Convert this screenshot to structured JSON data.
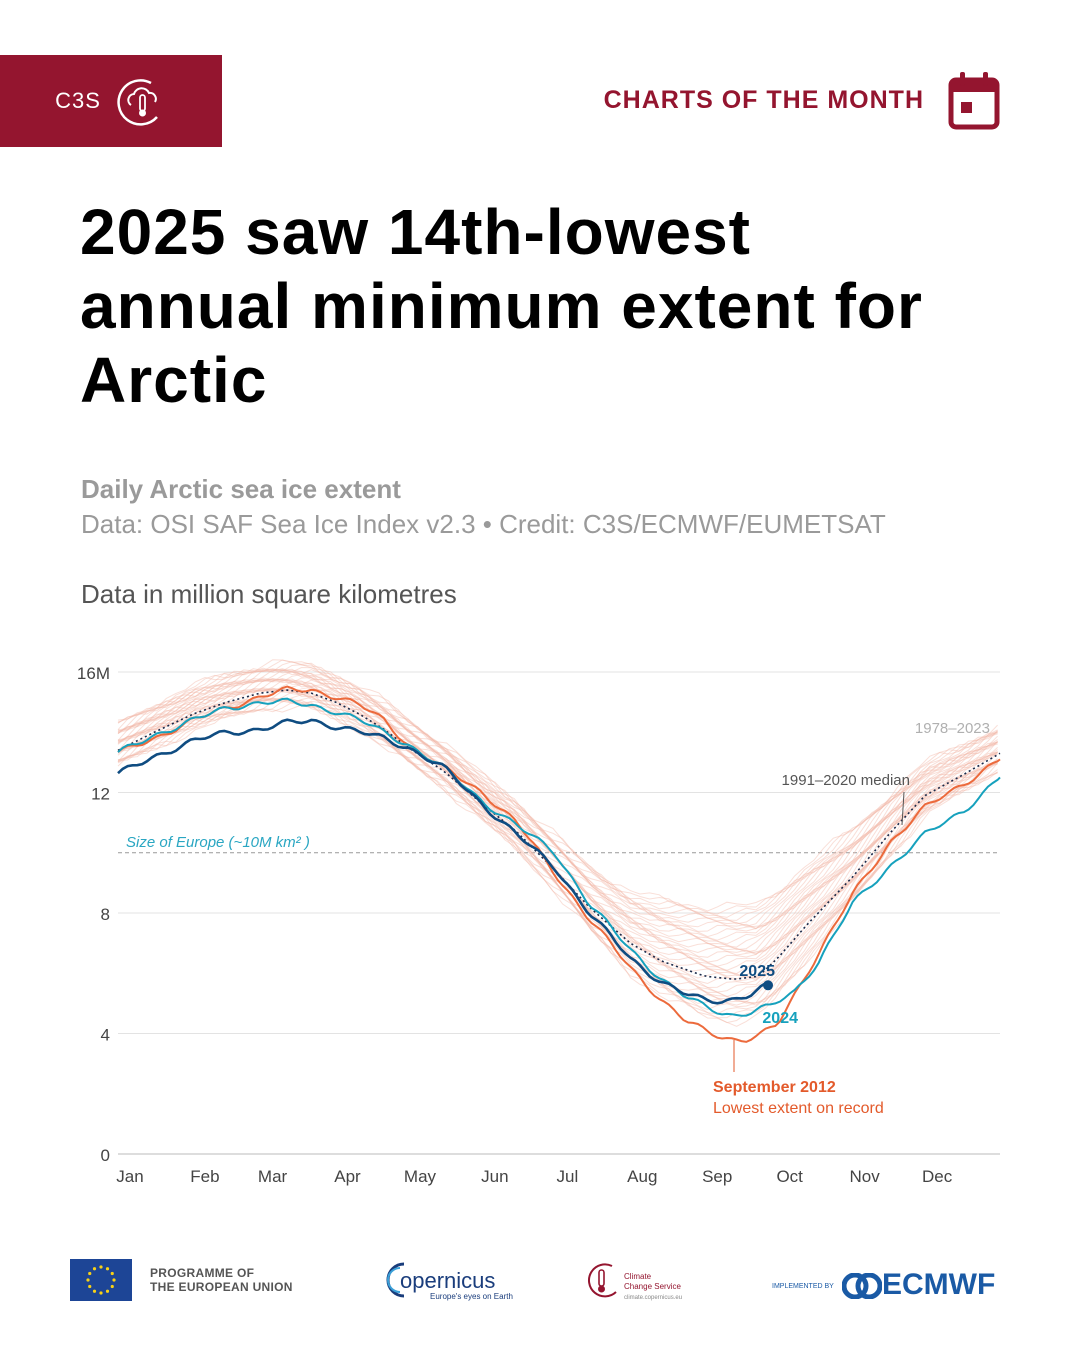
{
  "brand": {
    "name": "C3S",
    "color": "#94152f"
  },
  "series_label": "CHARTS OF THE MONTH",
  "headline": "2025 saw 14th-lowest annual minimum extent for Arctic",
  "subtitle": "Daily Arctic sea ice extent",
  "source": "Data: OSI SAF Sea Ice Index v2.3 • Credit: C3S/ECMWF/EUMETSAT",
  "unit_note": "Data in million square kilometres",
  "icons": {
    "brand_logo": "cloud-thermometer-icon",
    "calendar": "calendar-icon"
  },
  "footer": {
    "eu_line1": "PROGRAMME OF",
    "eu_line2": "THE EUROPEAN UNION",
    "copernicus": "opernicus",
    "copernicus_tagline": "Europe's eyes on Earth",
    "c3s_line1": "Climate",
    "c3s_line2": "Change Service",
    "c3s_url": "climate.copernicus.eu",
    "implemented_by": "IMPLEMENTED BY",
    "ecmwf": "ECMWF"
  },
  "chart_data": {
    "type": "line",
    "title": "Daily Arctic sea ice extent",
    "ylabel": "Data in million square kilometres",
    "ylim": [
      0,
      16
    ],
    "xlim": [
      0,
      365
    ],
    "yticks": [
      {
        "value": 0,
        "label": "0"
      },
      {
        "value": 4,
        "label": "4"
      },
      {
        "value": 8,
        "label": "8"
      },
      {
        "value": 12,
        "label": "12"
      },
      {
        "value": 16,
        "label": "16M"
      }
    ],
    "months": [
      {
        "label": "Jan",
        "day": 0
      },
      {
        "label": "Feb",
        "day": 31
      },
      {
        "label": "Mar",
        "day": 59
      },
      {
        "label": "Apr",
        "day": 90
      },
      {
        "label": "May",
        "day": 120
      },
      {
        "label": "Jun",
        "day": 151
      },
      {
        "label": "Jul",
        "day": 181
      },
      {
        "label": "Aug",
        "day": 212
      },
      {
        "label": "Sep",
        "day": 243
      },
      {
        "label": "Oct",
        "day": 273
      },
      {
        "label": "Nov",
        "day": 304
      },
      {
        "label": "Dec",
        "day": 334
      }
    ],
    "reference_line": {
      "value": 10,
      "label": "Size of Europe (~10M km² )",
      "color": "#29a6c2"
    },
    "series": [
      {
        "name": "1991–2020 median",
        "color": "#1b2a4a",
        "style": "dotted",
        "x": [
          0,
          15,
          31,
          45,
          59,
          70,
          80,
          90,
          100,
          110,
          120,
          135,
          151,
          165,
          181,
          195,
          212,
          225,
          243,
          255,
          265,
          273,
          285,
          304,
          320,
          334,
          350,
          365
        ],
        "y": [
          13.4,
          14.0,
          14.6,
          15.0,
          15.3,
          15.4,
          15.3,
          15.0,
          14.6,
          14.1,
          13.5,
          12.7,
          11.6,
          10.7,
          9.4,
          8.2,
          7.0,
          6.4,
          5.9,
          5.8,
          5.9,
          6.5,
          7.6,
          9.2,
          10.7,
          11.9,
          12.6,
          13.3
        ]
      },
      {
        "name": "2012",
        "color": "#ec6a3c",
        "style": "solid",
        "x": [
          0,
          15,
          31,
          45,
          59,
          70,
          80,
          90,
          100,
          110,
          120,
          135,
          151,
          165,
          181,
          195,
          212,
          225,
          235,
          243,
          250,
          255,
          260,
          265,
          273,
          285,
          304,
          320,
          334,
          350,
          365
        ],
        "y": [
          13.3,
          13.8,
          14.4,
          14.8,
          15.2,
          15.4,
          15.4,
          15.2,
          14.9,
          14.4,
          13.6,
          12.8,
          12.0,
          11.0,
          9.3,
          7.8,
          6.2,
          5.1,
          4.4,
          4.1,
          3.9,
          3.8,
          3.8,
          3.9,
          4.3,
          6.0,
          8.6,
          10.4,
          11.5,
          12.3,
          13.1
        ]
      },
      {
        "name": "2024",
        "color": "#16a1bd",
        "style": "solid",
        "x": [
          0,
          15,
          31,
          45,
          59,
          70,
          80,
          90,
          100,
          110,
          120,
          135,
          151,
          165,
          181,
          195,
          212,
          225,
          235,
          243,
          250,
          255,
          262,
          270,
          280,
          290,
          304,
          320,
          334,
          350,
          365
        ],
        "y": [
          13.3,
          13.9,
          14.4,
          14.8,
          15.0,
          15.0,
          14.9,
          14.7,
          14.4,
          14.0,
          13.6,
          12.8,
          11.7,
          10.9,
          10.0,
          8.3,
          6.8,
          5.8,
          5.2,
          4.9,
          4.7,
          4.6,
          4.7,
          4.9,
          5.4,
          6.4,
          8.3,
          9.6,
          10.6,
          11.4,
          12.5
        ]
      },
      {
        "name": "2025",
        "color": "#0f4c81",
        "style": "solid",
        "x": [
          0,
          15,
          31,
          45,
          59,
          70,
          80,
          90,
          100,
          110,
          120,
          135,
          151,
          165,
          181,
          195,
          212,
          225,
          235,
          243,
          250,
          255,
          262,
          269
        ],
        "y": [
          12.6,
          13.2,
          13.7,
          14.0,
          14.1,
          14.3,
          14.4,
          14.2,
          14.0,
          13.8,
          13.5,
          12.8,
          11.6,
          10.6,
          9.5,
          8.0,
          6.5,
          5.7,
          5.3,
          5.1,
          5.1,
          5.15,
          5.3,
          5.6
        ]
      }
    ],
    "annotations": [
      {
        "text": "1978–2023",
        "color": "#b0b0b0"
      },
      {
        "text": "1991–2020 median",
        "color": "#555555"
      },
      {
        "text": "2025",
        "color": "#0f4c81"
      },
      {
        "text": "2024",
        "color": "#16a1bd"
      },
      {
        "text": "September 2012",
        "color": "#e35a2b"
      },
      {
        "text": "Lowest extent on record",
        "color": "#e35a2b"
      }
    ],
    "background_band": {
      "name": "1978–2023",
      "color": "#f2b7a8"
    }
  }
}
